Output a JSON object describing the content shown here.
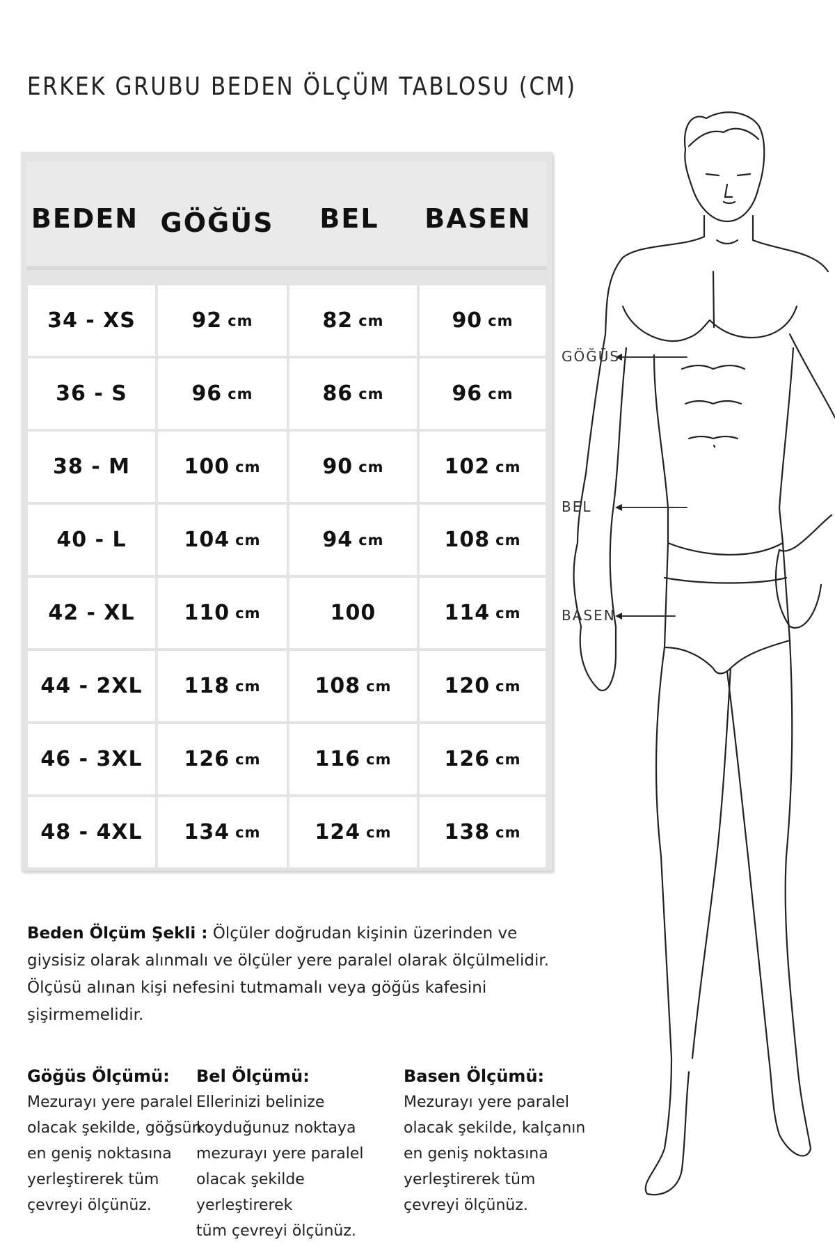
{
  "title": "ERKEK GRUBU BEDEN ÖLÇÜM TABLOSU (CM)",
  "table": {
    "headers": [
      "BEDEN",
      "GÖĞÜS",
      "BEL",
      "BASEN"
    ],
    "rows": [
      {
        "size": "34 - XS",
        "gogus": "92",
        "gogus_unit": "cm",
        "bel": "82",
        "bel_unit": "cm",
        "basen": "90",
        "basen_unit": "cm"
      },
      {
        "size": "36 - S",
        "gogus": "96",
        "gogus_unit": "cm",
        "bel": "86",
        "bel_unit": "cm",
        "basen": "96",
        "basen_unit": "cm"
      },
      {
        "size": "38 - M",
        "gogus": "100",
        "gogus_unit": "cm",
        "bel": "90",
        "bel_unit": "cm",
        "basen": "102",
        "basen_unit": "cm"
      },
      {
        "size": "40 - L",
        "gogus": "104",
        "gogus_unit": "cm",
        "bel": "94",
        "bel_unit": "cm",
        "basen": "108",
        "basen_unit": "cm"
      },
      {
        "size": "42 - XL",
        "gogus": "110",
        "gogus_unit": "cm",
        "bel": "100",
        "bel_unit": "",
        "basen": "114",
        "basen_unit": "cm"
      },
      {
        "size": "44 - 2XL",
        "gogus": "118",
        "gogus_unit": "cm",
        "bel": "108",
        "bel_unit": "cm",
        "basen": "120",
        "basen_unit": "cm"
      },
      {
        "size": "46 - 3XL",
        "gogus": "126",
        "gogus_unit": "cm",
        "bel": "116",
        "bel_unit": "cm",
        "basen": "126",
        "basen_unit": "cm"
      },
      {
        "size": "48 - 4XL",
        "gogus": "134",
        "gogus_unit": "cm",
        "bel": "124",
        "bel_unit": "cm",
        "basen": "138",
        "basen_unit": "cm"
      }
    ]
  },
  "method": {
    "label": "Beden Ölçüm Şekli :",
    "text": "Ölçüler doğrudan kişinin üzerinden ve giysisiz olarak alınmalı ve ölçüler yere paralel olarak ölçülmelidir. Ölçüsü alınan kişi nefesini tutmamalı veya göğüs kafesini şişirmemelidir."
  },
  "instructions": [
    {
      "title": "Göğüs Ölçümü:",
      "text": "Mezurayı yere paralel\nolacak şekilde, göğsün\nen geniş noktasına\nyerleştirerek tüm\nçevreyi ölçünüz."
    },
    {
      "title": "Bel Ölçümü:",
      "text": "Ellerinizi belinize\nkoyduğunuz noktaya\nmezurayı yere paralel\nolacak şekilde  yerleştirerek\ntüm çevreyi ölçünüz."
    },
    {
      "title": "Basen Ölçümü:",
      "text": "Mezurayı yere paralel\nolacak şekilde, kalçanın\nen geniş noktasına\nyerleştirerek tüm\nçevreyi ölçünüz."
    }
  ],
  "figure": {
    "labels": {
      "gogus": "GÖĞÜS",
      "bel": "BEL",
      "basen": "BASEN"
    }
  }
}
